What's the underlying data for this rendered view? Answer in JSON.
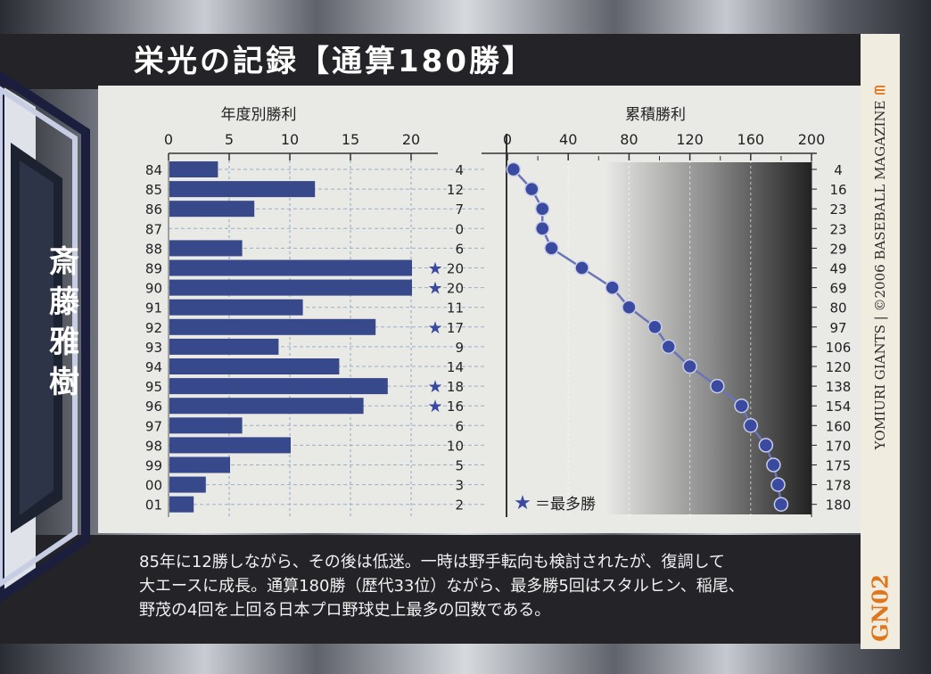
{
  "header": {
    "title": "栄光の記録【通算180勝】"
  },
  "player": {
    "name": [
      "斎",
      "藤",
      "雅",
      "樹"
    ]
  },
  "card": {
    "copyright": "YOMIURI GIANTS | ©2006 BASEBALL MAGAZINE",
    "code": "GN02",
    "logo_icon": "giants-logo-icon",
    "accent_color": "#e0761b"
  },
  "description": "85年に12勝しながら、その後は低迷。一時は野手転向も検討されたが、復調して\n大エースに成長。通算180勝（歴代33位）ながら、最多勝5回はスタルヒン、稲尾、\n野茂の4回を上回る日本プロ野球史上最多の回数である。",
  "chart_data": [
    {
      "type": "bar",
      "orientation": "horizontal",
      "title": "年度別勝利",
      "categories": [
        "84",
        "85",
        "86",
        "87",
        "88",
        "89",
        "90",
        "91",
        "92",
        "93",
        "94",
        "95",
        "96",
        "97",
        "98",
        "99",
        "00",
        "01"
      ],
      "values": [
        4,
        12,
        7,
        0,
        6,
        20,
        20,
        11,
        17,
        9,
        14,
        18,
        16,
        6,
        10,
        5,
        3,
        2
      ],
      "value_labels": [
        "4",
        "12",
        "7",
        "0",
        "6",
        "20",
        "20",
        "11",
        "17",
        "9",
        "14",
        "18",
        "16",
        "6",
        "10",
        "5",
        "3",
        "2"
      ],
      "star_marked": [
        "89",
        "90",
        "92",
        "95",
        "96"
      ],
      "xlim": [
        0,
        20
      ],
      "xticks": [
        "0",
        "5",
        "10",
        "15",
        "20"
      ],
      "bar_color": "#37498a",
      "grid": true
    },
    {
      "type": "line",
      "title": "累積勝利",
      "x": [
        4,
        16,
        23,
        23,
        29,
        49,
        69,
        80,
        97,
        106,
        120,
        138,
        154,
        160,
        170,
        175,
        178,
        180
      ],
      "x_labels": [
        "4",
        "16",
        "23",
        "23",
        "29",
        "49",
        "69",
        "80",
        "97",
        "106",
        "120",
        "138",
        "154",
        "160",
        "170",
        "175",
        "178",
        "180"
      ],
      "xlim": [
        0,
        200
      ],
      "xticks": [
        "0",
        "40",
        "80",
        "120",
        "160",
        "200"
      ],
      "minor_ticks": [
        "20",
        "60",
        "100",
        "140",
        "180"
      ],
      "marker_color": "#3a4aa0",
      "grid": true
    }
  ],
  "legend": {
    "star_icon": "star-icon",
    "label": "＝最多勝"
  }
}
